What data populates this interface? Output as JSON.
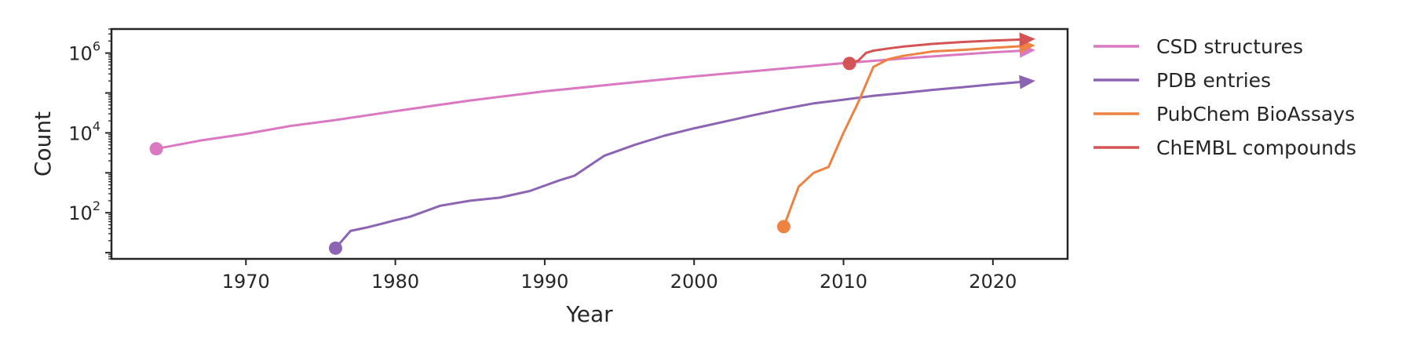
{
  "chart_data": {
    "type": "line",
    "xlabel": "Year",
    "ylabel": "Count",
    "yscale": "log",
    "xlim": [
      1961,
      2025
    ],
    "ylim": [
      7,
      4000000
    ],
    "xticks": [
      1970,
      1980,
      1990,
      2000,
      2010,
      2020
    ],
    "yticks": [
      {
        "value": 100,
        "base": "10",
        "exp": "2"
      },
      {
        "value": 10000,
        "base": "10",
        "exp": "4"
      },
      {
        "value": 1000000,
        "base": "10",
        "exp": "6"
      }
    ],
    "legend_position": "outside-right",
    "series": [
      {
        "name": "CSD structures",
        "color": "#DA78C1",
        "x": [
          1964,
          1967,
          1970,
          1973,
          1976,
          1980,
          1985,
          1990,
          1995,
          2000,
          2005,
          2010,
          2015,
          2020,
          2022
        ],
        "values": [
          4000,
          6500,
          9500,
          15000,
          21000,
          35000,
          65000,
          110000,
          170000,
          260000,
          380000,
          560000,
          780000,
          1050000,
          1150000
        ]
      },
      {
        "name": "PDB entries",
        "color": "#8C64B4",
        "x": [
          1976,
          1977,
          1978,
          1979,
          1980,
          1981,
          1983,
          1985,
          1987,
          1989,
          1991,
          1992,
          1994,
          1996,
          1998,
          2000,
          2002,
          2004,
          2006,
          2008,
          2010,
          2012,
          2014,
          2016,
          2018,
          2020,
          2022
        ],
        "values": [
          13,
          35,
          42,
          52,
          65,
          80,
          150,
          200,
          240,
          350,
          650,
          850,
          2700,
          5000,
          8500,
          13000,
          19000,
          28000,
          40000,
          55000,
          68000,
          85000,
          100000,
          120000,
          140000,
          165000,
          190000
        ]
      },
      {
        "name": "PubChem BioAssays",
        "color": "#EE8242",
        "x": [
          2006,
          2007,
          2008,
          2009,
          2010,
          2011,
          2012,
          2013,
          2014,
          2016,
          2018,
          2020,
          2022
        ],
        "values": [
          45,
          450,
          1000,
          1400,
          10000,
          60000,
          450000,
          700000,
          850000,
          1100000,
          1200000,
          1350000,
          1500000
        ]
      },
      {
        "name": "ChEMBL compounds",
        "color": "#D45456",
        "x": [
          2010.4,
          2011,
          2011.5,
          2012,
          2013,
          2014,
          2016,
          2018,
          2020,
          2022
        ],
        "values": [
          550000,
          650000,
          1000000,
          1150000,
          1300000,
          1450000,
          1700000,
          1900000,
          2050000,
          2200000
        ]
      }
    ]
  }
}
